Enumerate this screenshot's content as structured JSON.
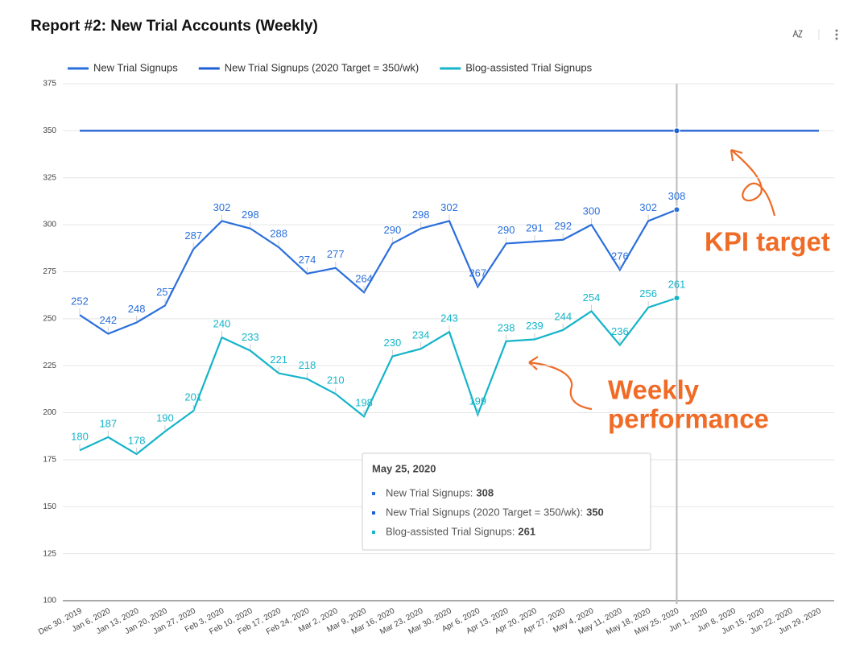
{
  "header": {
    "title": "Report #2: New Trial Accounts (Weekly)"
  },
  "chart_data": {
    "type": "line",
    "categories": [
      "Dec 30, 2019",
      "Jan 6, 2020",
      "Jan 13, 2020",
      "Jan 20, 2020",
      "Jan 27, 2020",
      "Feb 3, 2020",
      "Feb 10, 2020",
      "Feb 17, 2020",
      "Feb 24, 2020",
      "Mar 2, 2020",
      "Mar 9, 2020",
      "Mar 16, 2020",
      "Mar 23, 2020",
      "Mar 30, 2020",
      "Apr 6, 2020",
      "Apr 13, 2020",
      "Apr 20, 2020",
      "Apr 27, 2020",
      "May 4, 2020",
      "May 11, 2020",
      "May 18, 2020",
      "May 25, 2020",
      "Jun 1, 2020",
      "Jun 8, 2020",
      "Jun 15, 2020",
      "Jun 22, 2020",
      "Jun 29, 2020"
    ],
    "series": [
      {
        "name": "New Trial Signups",
        "color": "#2a6fdb",
        "data_labels": true,
        "values": [
          252,
          242,
          248,
          257,
          287,
          302,
          298,
          288,
          274,
          277,
          264,
          290,
          298,
          302,
          267,
          290,
          291,
          292,
          300,
          276,
          302,
          308,
          null,
          null,
          null,
          null,
          null
        ]
      },
      {
        "name": "New Trial Signups (2020 Target = 350/wk)",
        "color": "#1d5fd4",
        "data_labels": false,
        "values": [
          350,
          350,
          350,
          350,
          350,
          350,
          350,
          350,
          350,
          350,
          350,
          350,
          350,
          350,
          350,
          350,
          350,
          350,
          350,
          350,
          350,
          350,
          350,
          350,
          350,
          350,
          350
        ]
      },
      {
        "name": "Blog-assisted Trial Signups",
        "color": "#14b4c9",
        "data_labels": true,
        "values": [
          180,
          187,
          178,
          190,
          201,
          240,
          233,
          221,
          218,
          210,
          198,
          230,
          234,
          243,
          199,
          238,
          239,
          244,
          254,
          236,
          256,
          261,
          null,
          null,
          null,
          null,
          null
        ]
      }
    ],
    "ylim": [
      100,
      375
    ],
    "yticks": [
      100,
      125,
      150,
      175,
      200,
      225,
      250,
      275,
      300,
      325,
      350,
      375
    ],
    "grid": true,
    "legend": "top",
    "tooltip": {
      "title": "May 25, 2020",
      "items": [
        {
          "label": "New Trial Signups:",
          "value": 308
        },
        {
          "label": "New Trial Signups (2020 Target = 350/wk):",
          "value": 350
        },
        {
          "label": "Blog-assisted Trial Signups:",
          "value": 261
        }
      ]
    },
    "annotations": [
      {
        "lines": [
          "KPI target"
        ]
      },
      {
        "lines": [
          "Weekly",
          "performance"
        ]
      }
    ]
  }
}
